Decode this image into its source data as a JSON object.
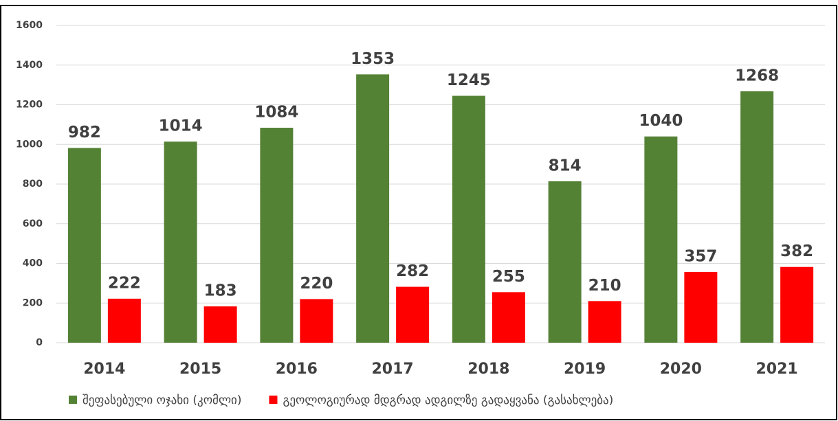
{
  "chart_data": {
    "type": "bar",
    "categories": [
      "2014",
      "2015",
      "2016",
      "2017",
      "2018",
      "2019",
      "2020",
      "2021"
    ],
    "series": [
      {
        "name": "შეფასებული ოჯახი (კომლი)",
        "color": "#548235",
        "values": [
          982,
          1014,
          1084,
          1353,
          1245,
          814,
          1040,
          1268
        ]
      },
      {
        "name": "გეოლოგიურად მდგრად ადგილზე გადაყვანა (გასახლება)",
        "color": "#ff0000",
        "values": [
          222,
          183,
          220,
          282,
          255,
          210,
          357,
          382
        ]
      }
    ],
    "ylim": [
      0,
      1600
    ],
    "yticks": [
      0,
      200,
      400,
      600,
      800,
      1000,
      1200,
      1400,
      1600
    ],
    "grid": true,
    "legend": "bottom"
  }
}
